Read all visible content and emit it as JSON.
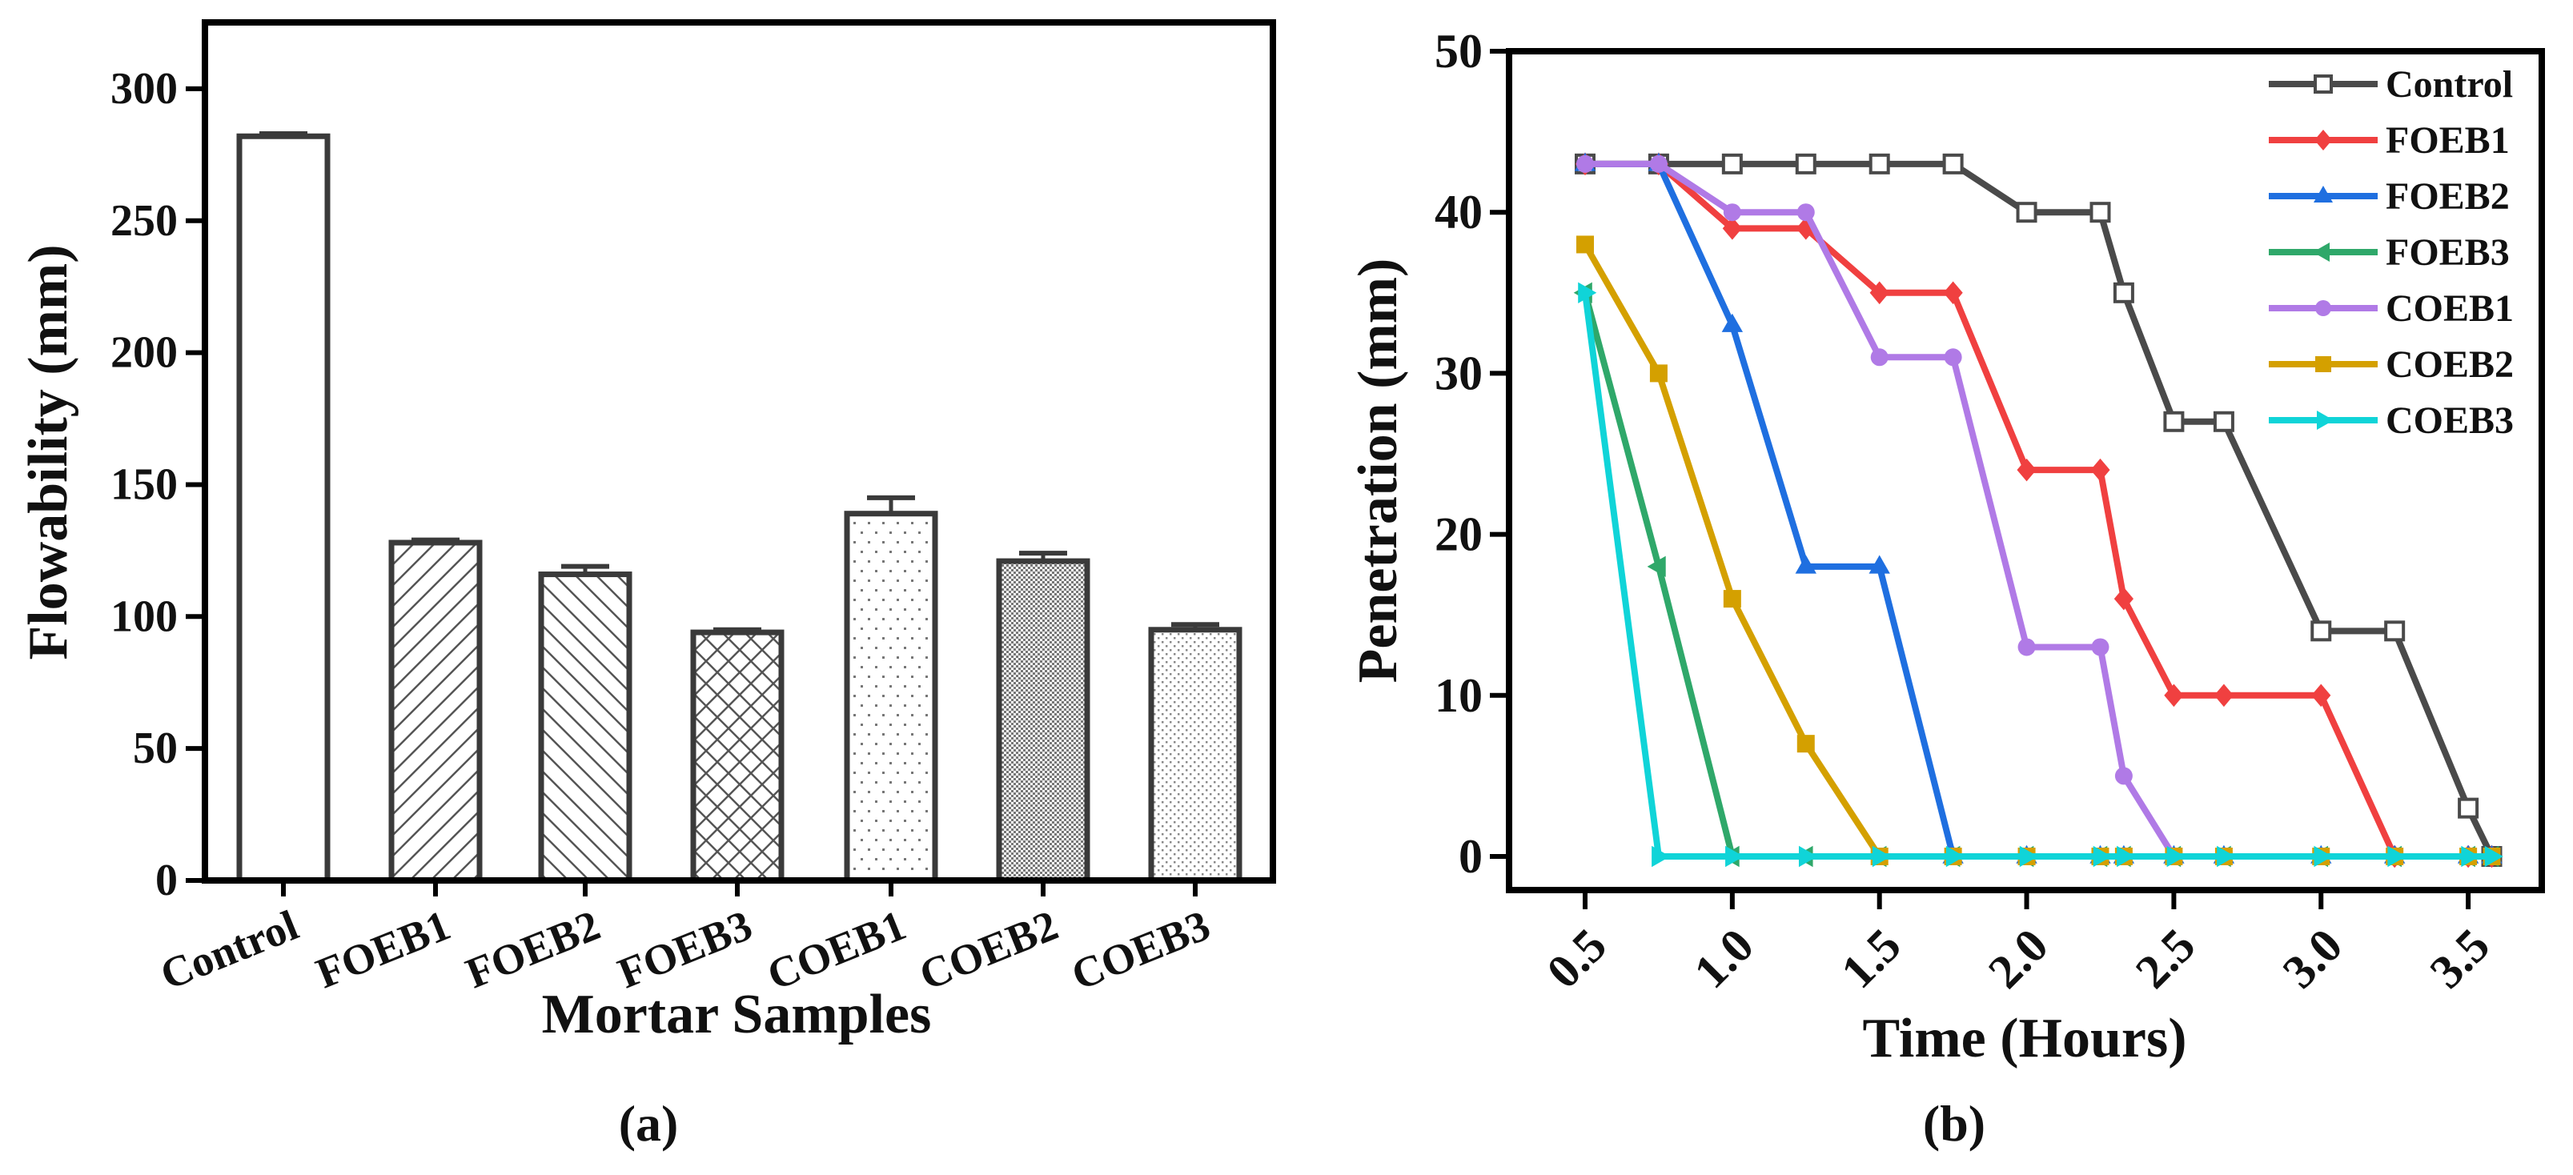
{
  "chart_data": [
    {
      "panel_label": "(a)",
      "type": "bar",
      "title": "",
      "xlabel": "Mortar Samples",
      "ylabel": "Flowability (mm)",
      "ylim": [
        0,
        325
      ],
      "yticks": [
        0,
        50,
        100,
        150,
        200,
        250,
        300
      ],
      "categories": [
        "Control",
        "FOEB1",
        "FOEB2",
        "FOEB3",
        "COEB1",
        "COEB2",
        "COEB3"
      ],
      "values": [
        282,
        128,
        116,
        94,
        139,
        121,
        95
      ],
      "errors": [
        1,
        1,
        3,
        1,
        6,
        3,
        2
      ],
      "fill_patterns": [
        "none",
        "diagonal-up",
        "diagonal-down",
        "crosshatch",
        "sparse-dots",
        "dense-dots",
        "fine-dots"
      ],
      "colors": {
        "edge": "#3a3a3a"
      },
      "grid": false
    },
    {
      "panel_label": "(b)",
      "type": "line",
      "title": "",
      "xlabel": "Time (Hours)",
      "ylabel": "Penetration (mm)",
      "xlim": [
        0.24,
        3.75
      ],
      "ylim": [
        -2.1,
        50
      ],
      "xticks": [
        "0.5",
        "1.0",
        "1.5",
        "2.0",
        "2.5",
        "3.0",
        "3.5"
      ],
      "yticks": [
        0,
        10,
        20,
        30,
        40,
        50
      ],
      "x": [
        0.5,
        0.75,
        1.0,
        1.25,
        1.5,
        1.75,
        2.0,
        2.25,
        2.33,
        2.5,
        2.67,
        3.0,
        3.25,
        3.5,
        3.58
      ],
      "legend_position": "top-right",
      "grid": false,
      "series": [
        {
          "name": "Control",
          "color": "#4a4a4a",
          "marker": "open-square",
          "values": [
            43,
            43,
            43,
            43,
            43,
            43,
            40,
            40,
            35,
            27,
            27,
            14,
            14,
            3,
            0
          ]
        },
        {
          "name": "FOEB1",
          "color": "#f04040",
          "marker": "diamond",
          "values": [
            43,
            43,
            39,
            39,
            35,
            35,
            24,
            24,
            16,
            10,
            10,
            10,
            0,
            0,
            0
          ]
        },
        {
          "name": "FOEB2",
          "color": "#1f6fe0",
          "marker": "triangle-up",
          "values": [
            43,
            43,
            33,
            18,
            18,
            0,
            0,
            0,
            0,
            0,
            0,
            0,
            0,
            0,
            0
          ]
        },
        {
          "name": "FOEB3",
          "color": "#2fa86a",
          "marker": "triangle-left",
          "values": [
            35,
            18,
            0,
            0,
            0,
            0,
            0,
            0,
            0,
            0,
            0,
            0,
            0,
            0,
            0
          ]
        },
        {
          "name": "COEB1",
          "color": "#b07ae6",
          "marker": "circle",
          "values": [
            43,
            43,
            40,
            40,
            31,
            31,
            13,
            13,
            5,
            0,
            0,
            0,
            0,
            0,
            0
          ]
        },
        {
          "name": "COEB2",
          "color": "#d4a000",
          "marker": "square",
          "values": [
            38,
            30,
            16,
            7,
            0,
            0,
            0,
            0,
            0,
            0,
            0,
            0,
            0,
            0,
            0
          ]
        },
        {
          "name": "COEB3",
          "color": "#10d4d8",
          "marker": "triangle-right",
          "values": [
            35,
            0,
            0,
            0,
            0,
            0,
            0,
            0,
            0,
            0,
            0,
            0,
            0,
            0,
            0
          ]
        }
      ]
    }
  ]
}
